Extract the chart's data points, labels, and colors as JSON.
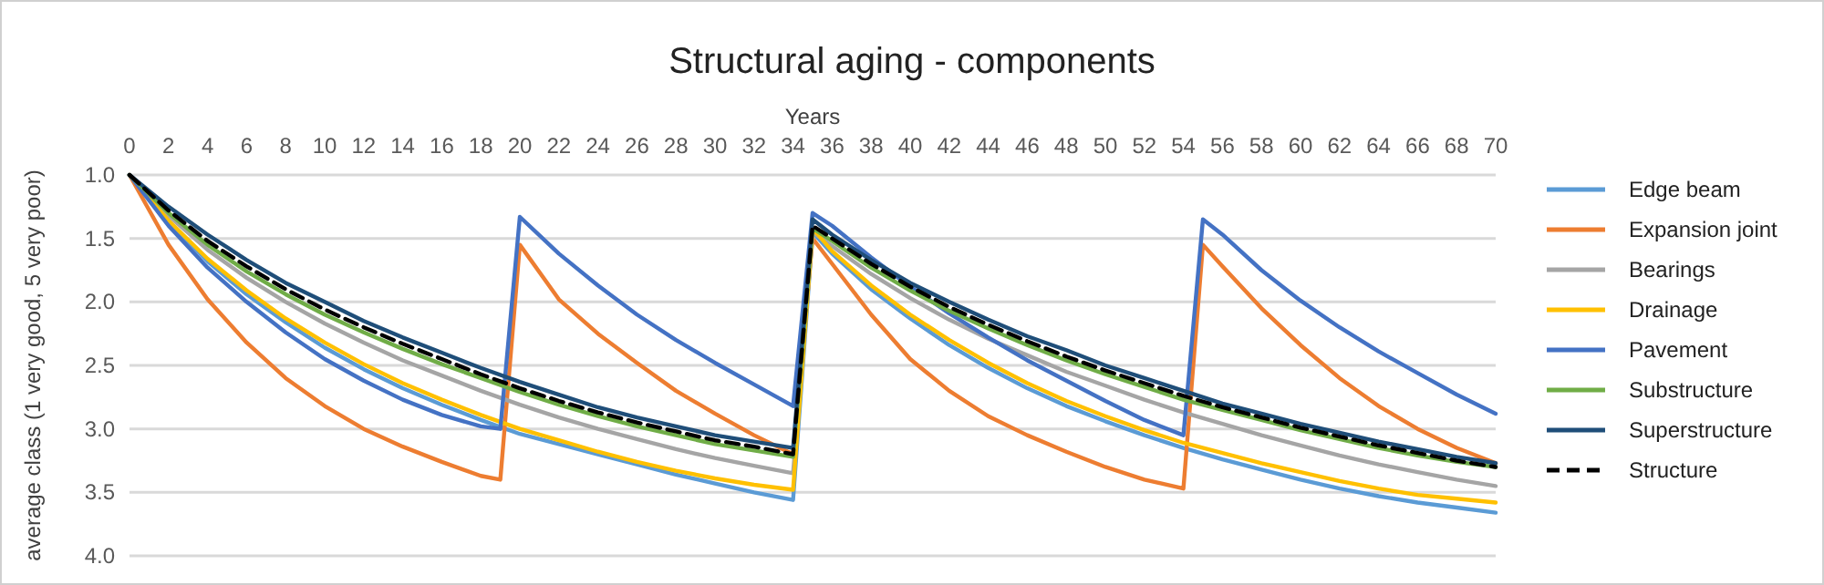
{
  "chart_data": {
    "type": "line",
    "title": "Structural aging - components",
    "xlabel": "Years",
    "ylabel": "average class (1 very good, 5 very poor)",
    "xlim": [
      0,
      70
    ],
    "xticks": [
      0,
      2,
      4,
      6,
      8,
      10,
      12,
      14,
      16,
      18,
      20,
      22,
      24,
      26,
      28,
      30,
      32,
      34,
      36,
      38,
      40,
      42,
      44,
      46,
      48,
      50,
      52,
      54,
      56,
      58,
      60,
      62,
      64,
      66,
      68,
      70
    ],
    "ylim": [
      4.0,
      1.0
    ],
    "yticks": [
      {
        "value": 1,
        "label": "1.0"
      },
      {
        "value": 1.5,
        "label": "1.5"
      },
      {
        "value": 2,
        "label": "2.0"
      },
      {
        "value": 2.5,
        "label": "2.5"
      },
      {
        "value": 3,
        "label": "3.0"
      },
      {
        "value": 3.5,
        "label": "3.5"
      },
      {
        "value": 4,
        "label": "4.0"
      }
    ],
    "grid": "y",
    "legend": "right",
    "line_style": "solid",
    "marker": "none",
    "series": [
      {
        "name": "Edge beam",
        "color": "#5b9bd5",
        "x": [
          0,
          2,
          4,
          6,
          8,
          10,
          12,
          14,
          16,
          18,
          20,
          22,
          24,
          26,
          28,
          30,
          32,
          34,
          35,
          36,
          38,
          40,
          42,
          44,
          46,
          48,
          50,
          52,
          54,
          56,
          58,
          60,
          62,
          64,
          66,
          68,
          70
        ],
        "values": [
          1.0,
          1.37,
          1.68,
          1.94,
          2.16,
          2.36,
          2.53,
          2.68,
          2.81,
          2.93,
          3.04,
          3.12,
          3.2,
          3.28,
          3.36,
          3.43,
          3.5,
          3.56,
          1.45,
          1.62,
          1.9,
          2.13,
          2.34,
          2.52,
          2.68,
          2.82,
          2.94,
          3.05,
          3.15,
          3.24,
          3.32,
          3.4,
          3.47,
          3.53,
          3.58,
          3.62,
          3.66
        ]
      },
      {
        "name": "Expansion joint",
        "color": "#ed7d31",
        "x": [
          0,
          2,
          4,
          6,
          8,
          10,
          12,
          14,
          16,
          18,
          19,
          20,
          22,
          24,
          26,
          28,
          30,
          32,
          34,
          35,
          36,
          38,
          40,
          42,
          44,
          46,
          48,
          50,
          52,
          54,
          55,
          56,
          58,
          60,
          62,
          64,
          66,
          68,
          70
        ],
        "values": [
          1.0,
          1.55,
          1.98,
          2.32,
          2.6,
          2.82,
          3.0,
          3.14,
          3.26,
          3.37,
          3.4,
          1.55,
          1.98,
          2.25,
          2.48,
          2.7,
          2.88,
          3.05,
          3.2,
          1.5,
          1.7,
          2.1,
          2.45,
          2.7,
          2.9,
          3.05,
          3.18,
          3.3,
          3.4,
          3.47,
          1.55,
          1.72,
          2.05,
          2.34,
          2.6,
          2.82,
          3.0,
          3.15,
          3.27
        ]
      },
      {
        "name": "Bearings",
        "color": "#a5a5a5",
        "x": [
          0,
          2,
          4,
          6,
          8,
          10,
          12,
          14,
          16,
          18,
          20,
          22,
          24,
          26,
          28,
          30,
          32,
          34,
          35,
          36,
          38,
          40,
          42,
          44,
          46,
          48,
          50,
          52,
          54,
          56,
          58,
          60,
          62,
          64,
          66,
          68,
          70
        ],
        "values": [
          1.0,
          1.32,
          1.59,
          1.81,
          2.0,
          2.17,
          2.32,
          2.46,
          2.58,
          2.7,
          2.81,
          2.91,
          3.0,
          3.08,
          3.16,
          3.23,
          3.29,
          3.35,
          1.45,
          1.56,
          1.78,
          1.97,
          2.14,
          2.29,
          2.42,
          2.55,
          2.66,
          2.77,
          2.87,
          2.96,
          3.05,
          3.13,
          3.21,
          3.28,
          3.34,
          3.4,
          3.45
        ]
      },
      {
        "name": "Drainage",
        "color": "#ffc000",
        "x": [
          0,
          2,
          4,
          6,
          8,
          10,
          12,
          14,
          16,
          18,
          20,
          22,
          24,
          26,
          28,
          30,
          32,
          34,
          35,
          36,
          38,
          40,
          42,
          44,
          46,
          48,
          50,
          52,
          54,
          56,
          58,
          60,
          62,
          64,
          66,
          68,
          70
        ],
        "values": [
          1.0,
          1.36,
          1.66,
          1.91,
          2.13,
          2.32,
          2.49,
          2.64,
          2.77,
          2.89,
          3.0,
          3.09,
          3.18,
          3.26,
          3.33,
          3.39,
          3.44,
          3.48,
          1.42,
          1.6,
          1.87,
          2.1,
          2.3,
          2.48,
          2.64,
          2.78,
          2.9,
          3.01,
          3.11,
          3.19,
          3.27,
          3.34,
          3.41,
          3.47,
          3.52,
          3.55,
          3.58
        ]
      },
      {
        "name": "Pavement",
        "color": "#4472c4",
        "x": [
          0,
          2,
          4,
          6,
          8,
          10,
          12,
          14,
          16,
          18,
          19,
          20,
          22,
          24,
          26,
          28,
          30,
          32,
          34,
          35,
          36,
          38,
          40,
          42,
          44,
          46,
          48,
          50,
          52,
          54,
          55,
          56,
          58,
          60,
          62,
          64,
          66,
          68,
          70
        ],
        "values": [
          1.0,
          1.4,
          1.73,
          2.0,
          2.24,
          2.45,
          2.62,
          2.77,
          2.89,
          2.98,
          3.0,
          1.33,
          1.62,
          1.87,
          2.1,
          2.3,
          2.48,
          2.65,
          2.82,
          1.3,
          1.4,
          1.65,
          1.88,
          2.09,
          2.28,
          2.46,
          2.62,
          2.78,
          2.93,
          3.05,
          1.35,
          1.47,
          1.75,
          1.99,
          2.2,
          2.39,
          2.56,
          2.73,
          2.88
        ]
      },
      {
        "name": "Substructure",
        "color": "#70ad47",
        "x": [
          0,
          2,
          4,
          6,
          8,
          10,
          12,
          14,
          16,
          18,
          20,
          22,
          24,
          26,
          28,
          30,
          32,
          34,
          35,
          36,
          38,
          40,
          42,
          44,
          46,
          48,
          50,
          52,
          54,
          56,
          58,
          60,
          62,
          64,
          66,
          68,
          70
        ],
        "values": [
          1.0,
          1.3,
          1.55,
          1.76,
          1.94,
          2.1,
          2.24,
          2.37,
          2.49,
          2.6,
          2.71,
          2.81,
          2.9,
          2.98,
          3.05,
          3.12,
          3.17,
          3.22,
          1.42,
          1.52,
          1.73,
          1.91,
          2.07,
          2.21,
          2.34,
          2.46,
          2.57,
          2.67,
          2.77,
          2.85,
          2.93,
          3.01,
          3.08,
          3.15,
          3.21,
          3.26,
          3.3
        ]
      },
      {
        "name": "Superstructure",
        "color": "#1f4e79",
        "x": [
          0,
          2,
          4,
          6,
          8,
          10,
          12,
          14,
          16,
          18,
          20,
          22,
          24,
          26,
          28,
          30,
          32,
          34,
          35,
          36,
          38,
          40,
          42,
          44,
          46,
          48,
          50,
          52,
          54,
          56,
          58,
          60,
          62,
          64,
          66,
          68,
          70
        ],
        "values": [
          1.0,
          1.25,
          1.47,
          1.67,
          1.85,
          2.0,
          2.15,
          2.28,
          2.4,
          2.52,
          2.63,
          2.73,
          2.83,
          2.91,
          2.98,
          3.05,
          3.1,
          3.15,
          1.35,
          1.47,
          1.67,
          1.85,
          2.0,
          2.14,
          2.27,
          2.38,
          2.5,
          2.6,
          2.7,
          2.8,
          2.88,
          2.96,
          3.03,
          3.1,
          3.16,
          3.22,
          3.27
        ]
      },
      {
        "name": "Structure",
        "color": "#000000",
        "line_style": "dashed",
        "x": [
          0,
          2,
          4,
          6,
          8,
          10,
          12,
          14,
          16,
          18,
          20,
          22,
          24,
          26,
          28,
          30,
          32,
          34,
          35,
          36,
          38,
          40,
          42,
          44,
          46,
          48,
          50,
          52,
          54,
          56,
          58,
          60,
          62,
          64,
          66,
          68,
          70
        ],
        "values": [
          1.0,
          1.28,
          1.52,
          1.72,
          1.9,
          2.06,
          2.2,
          2.33,
          2.45,
          2.57,
          2.68,
          2.78,
          2.87,
          2.95,
          3.02,
          3.09,
          3.14,
          3.2,
          1.4,
          1.5,
          1.7,
          1.88,
          2.04,
          2.18,
          2.31,
          2.43,
          2.54,
          2.64,
          2.74,
          2.83,
          2.91,
          2.99,
          3.06,
          3.13,
          3.19,
          3.25,
          3.3
        ]
      }
    ]
  }
}
